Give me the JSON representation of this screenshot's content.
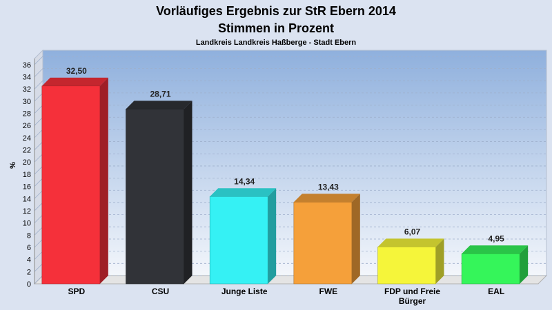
{
  "chart_data": {
    "type": "bar",
    "title": "Vorläufiges Ergebnis zur StR Ebern 2014",
    "subtitle": "Stimmen in Prozent",
    "caption": "Landkreis Landkreis Haßberge - Stadt Ebern",
    "ylabel": "%",
    "ylim": [
      0,
      37
    ],
    "yticks": [
      0,
      2,
      4,
      6,
      8,
      10,
      12,
      14,
      16,
      18,
      20,
      22,
      24,
      26,
      28,
      30,
      32,
      34,
      36
    ],
    "grid": true,
    "categories": [
      {
        "label": [
          "SPD"
        ],
        "value": 32.5,
        "value_label": "32,50",
        "color": "#f5303a"
      },
      {
        "label": [
          "CSU"
        ],
        "value": 28.71,
        "value_label": "28,71",
        "color": "#313338"
      },
      {
        "label": [
          "Junge Liste"
        ],
        "value": 14.34,
        "value_label": "14,34",
        "color": "#35f1f4"
      },
      {
        "label": [
          "FWE"
        ],
        "value": 13.43,
        "value_label": "13,43",
        "color": "#f5a03a"
      },
      {
        "label": [
          "FDP und Freie",
          "Bürger"
        ],
        "value": 6.07,
        "value_label": "6,07",
        "color": "#f5f53a"
      },
      {
        "label": [
          "EAL"
        ],
        "value": 4.95,
        "value_label": "4,95",
        "color": "#35f55a"
      }
    ]
  }
}
